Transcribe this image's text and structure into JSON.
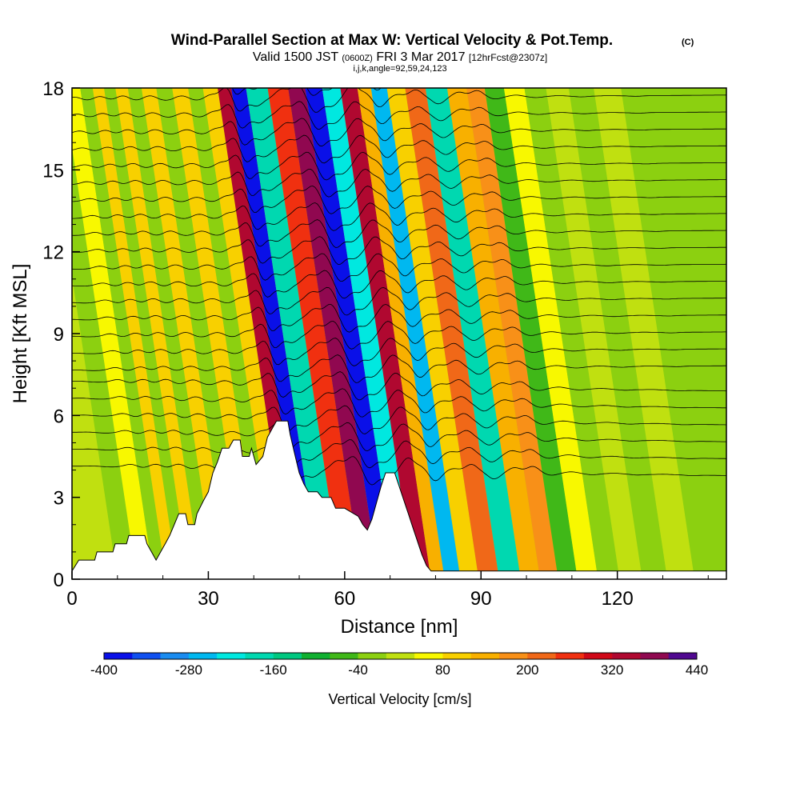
{
  "chart_data": {
    "type": "heatmap",
    "title": "Wind-Parallel Section at Max W: Vertical Velocity & Pot.Temp.",
    "title_mark": "(C)",
    "subtitle_prefix": "Valid 1500 JST",
    "subtitle_utc": "(0600Z)",
    "subtitle_date": "FRI 3 Mar 2017",
    "subtitle_fcst": "[12hrFcst@2307z]",
    "subtitle_indices": "i,j,k,angle=92,59,24,123",
    "xlabel": "Distance [nm]",
    "ylabel": "Height [Kft MSL]",
    "xlim": [
      0,
      144
    ],
    "ylim": [
      0,
      18
    ],
    "x_ticks": [
      0,
      30,
      60,
      90,
      120
    ],
    "y_ticks": [
      0,
      3,
      6,
      9,
      12,
      15,
      18
    ],
    "colorbar_label": "Vertical Velocity [cm/s]",
    "colorbar_ticks": [
      -400,
      -280,
      -160,
      -40,
      80,
      200,
      320,
      440
    ],
    "colorbar_min": -400,
    "colorbar_step": 40,
    "colorbar_colors": [
      "#0a10e8",
      "#1050f0",
      "#1a8cf0",
      "#00b8f0",
      "#00e8e0",
      "#00d8b0",
      "#00c880",
      "#10b030",
      "#40b818",
      "#8cd010",
      "#c0e010",
      "#f8f800",
      "#f8d000",
      "#f8b000",
      "#f89018",
      "#f06818",
      "#f03010",
      "#d00818",
      "#b00830",
      "#900850",
      "#500890"
    ],
    "terrain": [
      [
        0,
        0.3
      ],
      [
        1.5,
        0.7
      ],
      [
        5,
        0.7
      ],
      [
        5.5,
        1.0
      ],
      [
        9,
        1.0
      ],
      [
        9.5,
        1.3
      ],
      [
        12,
        1.3
      ],
      [
        12.5,
        1.6
      ],
      [
        16,
        1.6
      ],
      [
        16.5,
        1.3
      ],
      [
        17.5,
        1.0
      ],
      [
        18.5,
        0.7
      ],
      [
        19.5,
        1.0
      ],
      [
        20.5,
        1.3
      ],
      [
        21.5,
        1.6
      ],
      [
        22.5,
        2.0
      ],
      [
        23.5,
        2.4
      ],
      [
        25,
        2.4
      ],
      [
        25.5,
        2.0
      ],
      [
        27,
        2.0
      ],
      [
        27.5,
        2.4
      ],
      [
        29,
        2.9
      ],
      [
        30,
        3.2
      ],
      [
        31,
        3.9
      ],
      [
        32,
        4.3
      ],
      [
        33,
        4.8
      ],
      [
        34.5,
        4.8
      ],
      [
        35.5,
        5.1
      ],
      [
        37,
        5.1
      ],
      [
        37.5,
        4.5
      ],
      [
        39,
        4.5
      ],
      [
        39.5,
        4.8
      ],
      [
        40.5,
        4.2
      ],
      [
        42,
        4.5
      ],
      [
        43,
        5.2
      ],
      [
        44,
        5.5
      ],
      [
        45,
        5.8
      ],
      [
        47.5,
        5.8
      ],
      [
        48,
        5.3
      ],
      [
        49,
        4.6
      ],
      [
        50,
        3.9
      ],
      [
        51,
        3.5
      ],
      [
        52,
        3.2
      ],
      [
        54,
        3.2
      ],
      [
        55,
        3.0
      ],
      [
        57,
        3.0
      ],
      [
        58,
        2.6
      ],
      [
        60,
        2.6
      ],
      [
        61,
        2.5
      ],
      [
        63,
        2.3
      ],
      [
        64,
        2.0
      ],
      [
        65,
        1.8
      ],
      [
        66,
        2.2
      ],
      [
        67,
        2.8
      ],
      [
        68,
        3.4
      ],
      [
        69,
        3.9
      ],
      [
        71,
        3.9
      ],
      [
        72,
        3.4
      ],
      [
        73,
        2.9
      ],
      [
        74,
        2.4
      ],
      [
        75,
        1.9
      ],
      [
        76,
        1.4
      ],
      [
        77,
        0.9
      ],
      [
        78,
        0.5
      ],
      [
        79,
        0.3
      ],
      [
        144,
        0.3
      ]
    ],
    "w_bands": [
      {
        "x": 8,
        "w": 12
      },
      {
        "x": 12,
        "w": -8
      },
      {
        "x": 16.5,
        "w": 72
      },
      {
        "x": 19.5,
        "w": -24
      },
      {
        "x": 22,
        "w": 90
      },
      {
        "x": 24.5,
        "w": -20
      },
      {
        "x": 27,
        "w": 100
      },
      {
        "x": 30,
        "w": -30
      },
      {
        "x": 33,
        "w": 95
      },
      {
        "x": 36.5,
        "w": -35
      },
      {
        "x": 40,
        "w": 85
      },
      {
        "x": 43.5,
        "w": -40
      },
      {
        "x": 46.5,
        "w": 110
      },
      {
        "x": 50,
        "w": 340
      },
      {
        "x": 52.5,
        "w": -380
      },
      {
        "x": 56.5,
        "w": -200
      },
      {
        "x": 62,
        "w": 240
      },
      {
        "x": 65.5,
        "w": 360
      },
      {
        "x": 69.5,
        "w": -380
      },
      {
        "x": 73,
        "w": -220
      },
      {
        "x": 77.5,
        "w": 340
      },
      {
        "x": 80.5,
        "w": 120
      },
      {
        "x": 83.5,
        "w": -260
      },
      {
        "x": 87.5,
        "w": 80
      },
      {
        "x": 91.5,
        "w": 200
      },
      {
        "x": 96.5,
        "w": -180
      },
      {
        "x": 101,
        "w": 130
      },
      {
        "x": 105,
        "w": 170
      },
      {
        "x": 109,
        "w": -60
      },
      {
        "x": 113.5,
        "w": 40
      },
      {
        "x": 118,
        "w": -30
      },
      {
        "x": 123,
        "w": 20
      },
      {
        "x": 128,
        "w": -20
      },
      {
        "x": 134,
        "w": 10
      },
      {
        "x": 140,
        "w": -15
      }
    ]
  }
}
